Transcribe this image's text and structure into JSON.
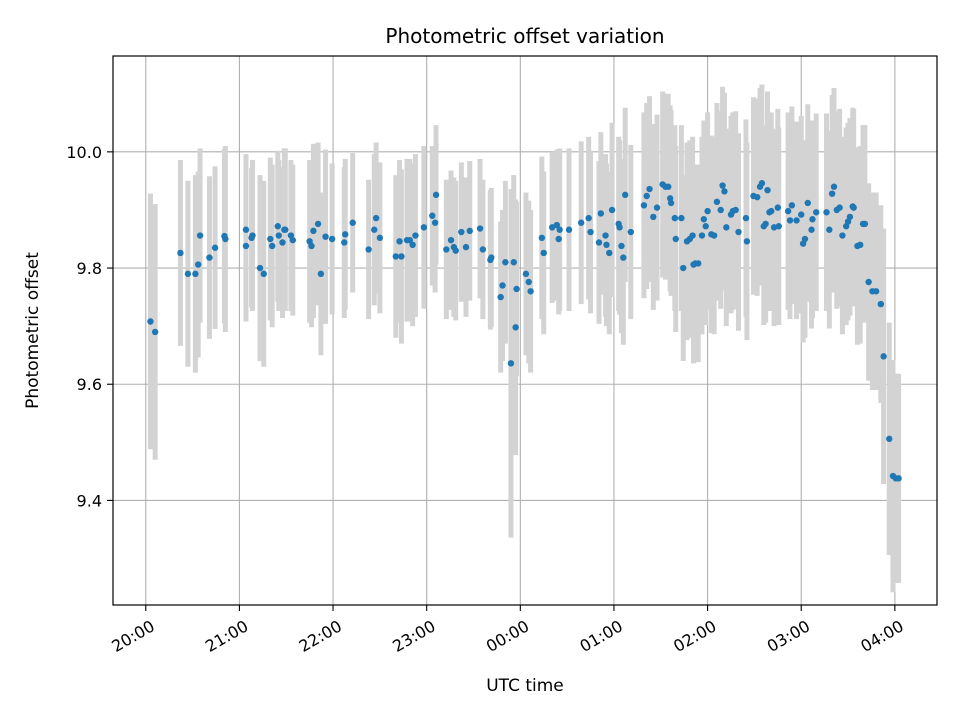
{
  "chart_data": {
    "type": "scatter",
    "title": "Photometric offset variation",
    "xlabel": "UTC time",
    "ylabel": "Photometric offset",
    "x_unit": "hours since 20:00 UTC",
    "xlim": [
      -0.35,
      8.45
    ],
    "ylim": [
      9.22,
      10.165
    ],
    "x_ticks": [
      {
        "value": 0,
        "label": "20:00"
      },
      {
        "value": 1,
        "label": "21:00"
      },
      {
        "value": 2,
        "label": "22:00"
      },
      {
        "value": 3,
        "label": "23:00"
      },
      {
        "value": 4,
        "label": "00:00"
      },
      {
        "value": 5,
        "label": "01:00"
      },
      {
        "value": 6,
        "label": "02:00"
      },
      {
        "value": 7,
        "label": "03:00"
      },
      {
        "value": 8,
        "label": "04:00"
      }
    ],
    "y_ticks": [
      {
        "value": 9.4,
        "label": "9.4"
      },
      {
        "value": 9.6,
        "label": "9.6"
      },
      {
        "value": 9.8,
        "label": "9.8"
      },
      {
        "value": 10.0,
        "label": "10.0"
      }
    ],
    "grid": true,
    "colors": {
      "point": "#1f77b4",
      "errorbar": "#d3d3d3",
      "grid": "#b0b0b0"
    },
    "series": [
      {
        "points": [
          [
            0.05,
            9.708,
            0.22
          ],
          [
            0.1,
            9.69,
            0.22
          ],
          [
            0.37,
            9.826,
            0.16
          ],
          [
            0.45,
            9.79,
            0.16
          ],
          [
            0.53,
            9.79,
            0.17
          ],
          [
            0.56,
            9.806,
            0.16
          ],
          [
            0.58,
            9.856,
            0.15
          ],
          [
            0.68,
            9.818,
            0.14
          ],
          [
            0.74,
            9.835,
            0.14
          ],
          [
            0.84,
            9.855,
            0.15
          ],
          [
            0.85,
            9.85,
            0.16
          ],
          [
            1.07,
            9.866,
            0.13
          ],
          [
            1.07,
            9.838,
            0.13
          ],
          [
            1.13,
            9.852,
            0.12
          ],
          [
            1.14,
            9.856,
            0.13
          ],
          [
            1.22,
            9.8,
            0.16
          ],
          [
            1.26,
            9.79,
            0.16
          ],
          [
            1.33,
            9.85,
            0.14
          ],
          [
            1.35,
            9.838,
            0.14
          ],
          [
            1.41,
            9.872,
            0.13
          ],
          [
            1.42,
            9.856,
            0.13
          ],
          [
            1.46,
            9.844,
            0.13
          ],
          [
            1.48,
            9.866,
            0.14
          ],
          [
            1.49,
            9.866,
            0.14
          ],
          [
            1.55,
            9.856,
            0.13
          ],
          [
            1.57,
            9.848,
            0.13
          ],
          [
            1.75,
            9.846,
            0.14
          ],
          [
            1.77,
            9.838,
            0.14
          ],
          [
            1.79,
            9.864,
            0.15
          ],
          [
            1.84,
            9.876,
            0.14
          ],
          [
            1.87,
            9.79,
            0.14
          ],
          [
            1.92,
            9.854,
            0.15
          ],
          [
            1.99,
            9.85,
            0.13
          ],
          [
            2.12,
            9.844,
            0.13
          ],
          [
            2.13,
            9.858,
            0.13
          ],
          [
            2.21,
            9.878,
            0.12
          ],
          [
            2.38,
            9.832,
            0.12
          ],
          [
            2.44,
            9.866,
            0.13
          ],
          [
            2.46,
            9.886,
            0.13
          ],
          [
            2.5,
            9.852,
            0.13
          ],
          [
            2.67,
            9.82,
            0.14
          ],
          [
            2.71,
            9.846,
            0.14
          ],
          [
            2.73,
            9.82,
            0.15
          ],
          [
            2.79,
            9.848,
            0.14
          ],
          [
            2.82,
            9.848,
            0.14
          ],
          [
            2.85,
            9.84,
            0.14
          ],
          [
            2.88,
            9.856,
            0.14
          ],
          [
            2.97,
            9.87,
            0.14
          ],
          [
            3.06,
            9.89,
            0.12
          ],
          [
            3.09,
            9.878,
            0.12
          ],
          [
            3.1,
            9.926,
            0.12
          ],
          [
            3.21,
            9.832,
            0.12
          ],
          [
            3.26,
            9.848,
            0.12
          ],
          [
            3.29,
            9.836,
            0.12
          ],
          [
            3.31,
            9.83,
            0.12
          ],
          [
            3.37,
            9.862,
            0.12
          ],
          [
            3.42,
            9.836,
            0.12
          ],
          [
            3.46,
            9.864,
            0.12
          ],
          [
            3.57,
            9.868,
            0.12
          ],
          [
            3.6,
            9.832,
            0.12
          ],
          [
            3.68,
            9.814,
            0.12
          ],
          [
            3.69,
            9.818,
            0.12
          ],
          [
            3.79,
            9.75,
            0.13
          ],
          [
            3.81,
            9.77,
            0.13
          ],
          [
            3.84,
            9.81,
            0.14
          ],
          [
            3.9,
            9.636,
            0.3
          ],
          [
            3.93,
            9.81,
            0.15
          ],
          [
            3.95,
            9.698,
            0.22
          ],
          [
            3.96,
            9.764,
            0.15
          ],
          [
            4.06,
            9.79,
            0.14
          ],
          [
            4.09,
            9.776,
            0.14
          ],
          [
            4.11,
            9.76,
            0.14
          ],
          [
            4.23,
            9.852,
            0.14
          ],
          [
            4.25,
            9.826,
            0.14
          ],
          [
            4.34,
            9.87,
            0.13
          ],
          [
            4.39,
            9.874,
            0.13
          ],
          [
            4.41,
            9.85,
            0.13
          ],
          [
            4.42,
            9.866,
            0.14
          ],
          [
            4.52,
            9.866,
            0.14
          ],
          [
            4.65,
            9.878,
            0.14
          ],
          [
            4.73,
            9.886,
            0.14
          ],
          [
            4.75,
            9.862,
            0.14
          ],
          [
            4.84,
            9.844,
            0.14
          ],
          [
            4.86,
            9.894,
            0.14
          ],
          [
            4.91,
            9.856,
            0.14
          ],
          [
            4.92,
            9.84,
            0.14
          ],
          [
            4.95,
            9.826,
            0.14
          ],
          [
            4.98,
            9.9,
            0.15
          ],
          [
            5.05,
            9.876,
            0.15
          ],
          [
            5.06,
            9.87,
            0.15
          ],
          [
            5.08,
            9.838,
            0.15
          ],
          [
            5.1,
            9.818,
            0.15
          ],
          [
            5.12,
            9.926,
            0.15
          ],
          [
            5.18,
            9.862,
            0.15
          ],
          [
            5.32,
            9.908,
            0.16
          ],
          [
            5.35,
            9.924,
            0.16
          ],
          [
            5.38,
            9.936,
            0.16
          ],
          [
            5.42,
            9.888,
            0.16
          ],
          [
            5.46,
            9.904,
            0.16
          ],
          [
            5.52,
            9.944,
            0.16
          ],
          [
            5.55,
            9.94,
            0.16
          ],
          [
            5.58,
            9.94,
            0.16
          ],
          [
            5.6,
            9.92,
            0.16
          ],
          [
            5.61,
            9.912,
            0.16
          ],
          [
            5.65,
            9.886,
            0.16
          ],
          [
            5.66,
            9.85,
            0.16
          ],
          [
            5.72,
            9.886,
            0.16
          ],
          [
            5.74,
            9.8,
            0.16
          ],
          [
            5.78,
            9.846,
            0.17
          ],
          [
            5.81,
            9.85,
            0.17
          ],
          [
            5.84,
            9.856,
            0.17
          ],
          [
            5.85,
            9.806,
            0.17
          ],
          [
            5.87,
            9.808,
            0.17
          ],
          [
            5.9,
            9.808,
            0.17
          ],
          [
            5.94,
            9.856,
            0.17
          ],
          [
            5.96,
            9.884,
            0.17
          ],
          [
            5.98,
            9.872,
            0.17
          ],
          [
            6.0,
            9.898,
            0.17
          ],
          [
            6.04,
            9.858,
            0.17
          ],
          [
            6.07,
            9.856,
            0.17
          ],
          [
            6.1,
            9.914,
            0.17
          ],
          [
            6.14,
            9.9,
            0.17
          ],
          [
            6.16,
            9.942,
            0.17
          ],
          [
            6.18,
            9.932,
            0.17
          ],
          [
            6.2,
            9.87,
            0.17
          ],
          [
            6.25,
            9.892,
            0.17
          ],
          [
            6.27,
            9.898,
            0.17
          ],
          [
            6.3,
            9.9,
            0.17
          ],
          [
            6.33,
            9.862,
            0.17
          ],
          [
            6.41,
            9.886,
            0.17
          ],
          [
            6.42,
            9.846,
            0.17
          ],
          [
            6.49,
            9.924,
            0.17
          ],
          [
            6.53,
            9.922,
            0.17
          ],
          [
            6.56,
            9.94,
            0.17
          ],
          [
            6.58,
            9.946,
            0.17
          ],
          [
            6.6,
            9.872,
            0.17
          ],
          [
            6.62,
            9.876,
            0.17
          ],
          [
            6.64,
            9.934,
            0.17
          ],
          [
            6.66,
            9.896,
            0.17
          ],
          [
            6.68,
            9.898,
            0.17
          ],
          [
            6.71,
            9.87,
            0.17
          ],
          [
            6.75,
            9.904,
            0.17
          ],
          [
            6.76,
            9.872,
            0.17
          ],
          [
            6.86,
            9.898,
            0.17
          ],
          [
            6.88,
            9.882,
            0.17
          ],
          [
            6.9,
            9.908,
            0.17
          ],
          [
            6.95,
            9.882,
            0.17
          ],
          [
            7.0,
            9.892,
            0.17
          ],
          [
            7.02,
            9.842,
            0.17
          ],
          [
            7.04,
            9.85,
            0.17
          ],
          [
            7.07,
            9.912,
            0.17
          ],
          [
            7.11,
            9.866,
            0.17
          ],
          [
            7.12,
            9.884,
            0.17
          ],
          [
            7.16,
            9.896,
            0.17
          ],
          [
            7.27,
            9.896,
            0.17
          ],
          [
            7.3,
            9.866,
            0.17
          ],
          [
            7.33,
            9.928,
            0.17
          ],
          [
            7.35,
            9.94,
            0.17
          ],
          [
            7.38,
            9.9,
            0.17
          ],
          [
            7.41,
            9.904,
            0.17
          ],
          [
            7.44,
            9.856,
            0.17
          ],
          [
            7.48,
            9.872,
            0.17
          ],
          [
            7.5,
            9.88,
            0.17
          ],
          [
            7.52,
            9.888,
            0.17
          ],
          [
            7.55,
            9.906,
            0.17
          ],
          [
            7.56,
            9.904,
            0.17
          ],
          [
            7.6,
            9.838,
            0.17
          ],
          [
            7.63,
            9.84,
            0.17
          ],
          [
            7.66,
            9.876,
            0.17
          ],
          [
            7.68,
            9.876,
            0.17
          ],
          [
            7.72,
            9.776,
            0.17
          ],
          [
            7.76,
            9.76,
            0.17
          ],
          [
            7.8,
            9.76,
            0.17
          ],
          [
            7.85,
            9.738,
            0.17
          ],
          [
            7.88,
            9.648,
            0.22
          ],
          [
            7.94,
            9.506,
            0.2
          ],
          [
            7.98,
            9.442,
            0.2
          ],
          [
            8.01,
            9.438,
            0.18
          ],
          [
            8.04,
            9.438,
            0.18
          ]
        ]
      }
    ]
  }
}
